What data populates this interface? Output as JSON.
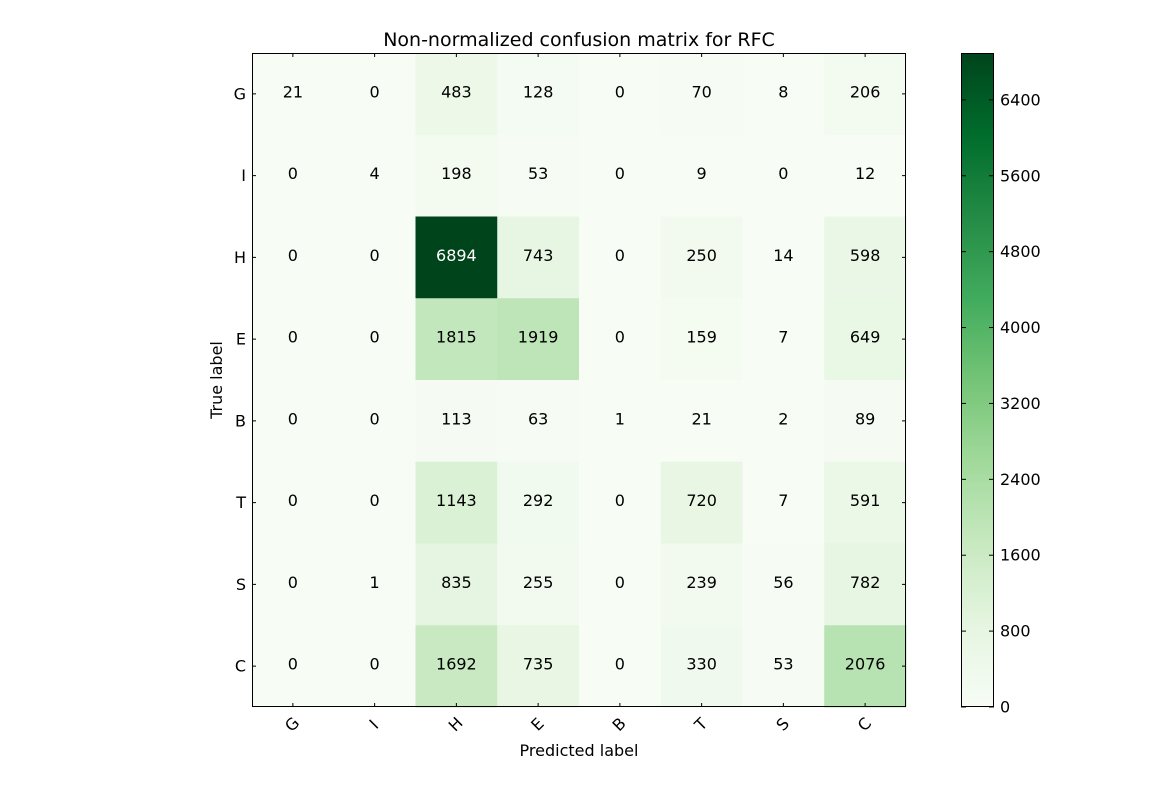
{
  "chart_data": {
    "type": "heatmap",
    "title": "Non-normalized confusion matrix for RFC",
    "xlabel": "Predicted label",
    "ylabel": "True label",
    "x_categories": [
      "G",
      "I",
      "H",
      "E",
      "B",
      "T",
      "S",
      "C"
    ],
    "y_categories": [
      "G",
      "I",
      "H",
      "E",
      "B",
      "T",
      "S",
      "C"
    ],
    "values": [
      [
        21,
        0,
        483,
        128,
        0,
        70,
        8,
        206
      ],
      [
        0,
        4,
        198,
        53,
        0,
        9,
        0,
        12
      ],
      [
        0,
        0,
        6894,
        743,
        0,
        250,
        14,
        598
      ],
      [
        0,
        0,
        1815,
        1919,
        0,
        159,
        7,
        649
      ],
      [
        0,
        0,
        113,
        63,
        1,
        21,
        2,
        89
      ],
      [
        0,
        0,
        1143,
        292,
        0,
        720,
        7,
        591
      ],
      [
        0,
        1,
        835,
        255,
        0,
        239,
        56,
        782
      ],
      [
        0,
        0,
        1692,
        735,
        0,
        330,
        53,
        2076
      ]
    ],
    "colormap": "Greens",
    "colorbar": {
      "min": 0,
      "max": 6894,
      "ticks": [
        0,
        800,
        1600,
        2400,
        3200,
        4000,
        4800,
        5600,
        6400
      ],
      "tick_labels": [
        "0",
        "800",
        "1600",
        "2400",
        "3200",
        "4000",
        "4800",
        "5600",
        "6400"
      ]
    },
    "colors": {
      "low": "#f7fcf5",
      "high": "#00441b",
      "text_dark": "#000000",
      "text_light": "#ffffff"
    }
  }
}
